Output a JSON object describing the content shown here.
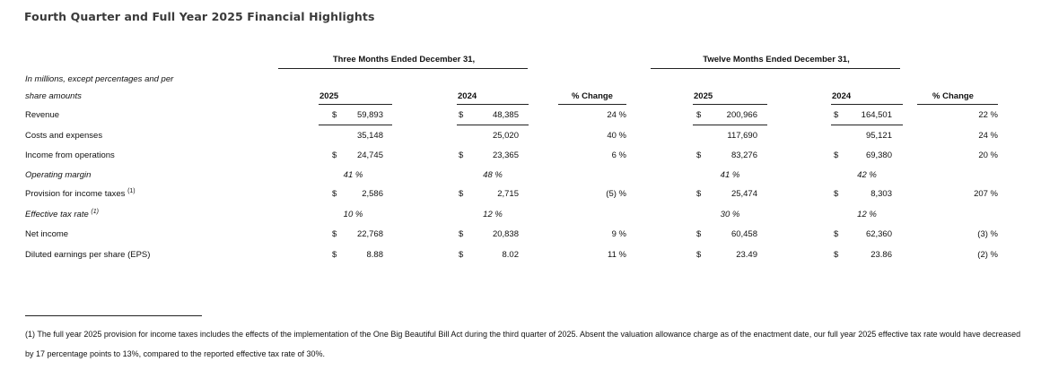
{
  "title": "Fourth Quarter and Full Year 2025 Financial Highlights",
  "note_line1": "In millions, except percentages and per",
  "note_line2": "share amounts",
  "groups": {
    "three": "Three Months Ended December 31,",
    "twelve": "Twelve Months Ended December 31,"
  },
  "columns": {
    "q2025": "2025",
    "q2024": "2024",
    "q_change": "% Change",
    "y2025": "2025",
    "y2024": "2024",
    "y_change": "% Change"
  },
  "rows": [
    {
      "label": "Revenue",
      "italic": false,
      "sup": "",
      "q25_cur": "$",
      "q25": "59,893",
      "q24_cur": "$",
      "q24": "48,385",
      "q_chg": "24 %",
      "y25_cur": "$",
      "y25": "200,966",
      "y24_cur": "$",
      "y24": "164,501",
      "y_chg": "22 %"
    },
    {
      "label": "Costs and expenses",
      "italic": false,
      "sup": "",
      "q25_cur": "",
      "q25": "35,148",
      "q24_cur": "",
      "q24": "25,020",
      "q_chg": "40 %",
      "y25_cur": "",
      "y25": "117,690",
      "y24_cur": "",
      "y24": "95,121",
      "y_chg": "24 %"
    },
    {
      "label": "Income from operations",
      "italic": false,
      "sup": "",
      "q25_cur": "$",
      "q25": "24,745",
      "q24_cur": "$",
      "q24": "23,365",
      "q_chg": "6 %",
      "y25_cur": "$",
      "y25": "83,276",
      "y24_cur": "$",
      "y24": "69,380",
      "y_chg": "20 %"
    },
    {
      "label": "Operating margin",
      "italic": true,
      "sup": "",
      "q25_cur": "",
      "q25": "41 %",
      "q24_cur": "",
      "q24": "48 %",
      "q_chg": "",
      "y25_cur": "",
      "y25": "41 %",
      "y24_cur": "",
      "y24": "42 %",
      "y_chg": ""
    },
    {
      "label": "Provision for income taxes",
      "italic": false,
      "sup": "(1)",
      "q25_cur": "$",
      "q25": "2,586",
      "q24_cur": "$",
      "q24": "2,715",
      "q_chg": "(5) %",
      "y25_cur": "$",
      "y25": "25,474",
      "y24_cur": "$",
      "y24": "8,303",
      "y_chg": "207 %"
    },
    {
      "label": "Effective tax rate",
      "italic": true,
      "sup": "(1)",
      "q25_cur": "",
      "q25": "10 %",
      "q24_cur": "",
      "q24": "12 %",
      "q_chg": "",
      "y25_cur": "",
      "y25": "30 %",
      "y24_cur": "",
      "y24": "12 %",
      "y_chg": ""
    },
    {
      "label": "Net income",
      "italic": false,
      "sup": "",
      "q25_cur": "$",
      "q25": "22,768",
      "q24_cur": "$",
      "q24": "20,838",
      "q_chg": "9 %",
      "y25_cur": "$",
      "y25": "60,458",
      "y24_cur": "$",
      "y24": "62,360",
      "y_chg": "(3) %"
    },
    {
      "label": "Diluted earnings per share (EPS)",
      "italic": false,
      "sup": "",
      "q25_cur": "$",
      "q25": "8.88",
      "q24_cur": "$",
      "q24": "8.02",
      "q_chg": "11 %",
      "y25_cur": "$",
      "y25": "23.49",
      "y24_cur": "$",
      "y24": "23.86",
      "y_chg": "(2) %"
    }
  ],
  "footnote": "(1) The full year 2025 provision for income taxes includes the effects of the implementation of the One Big Beautiful Bill Act during the third quarter of 2025. Absent the valuation allowance charge as of the enactment date, our full year 2025 effective tax rate would have decreased by 17 percentage points to 13%, compared to the reported effective tax rate of 30%."
}
